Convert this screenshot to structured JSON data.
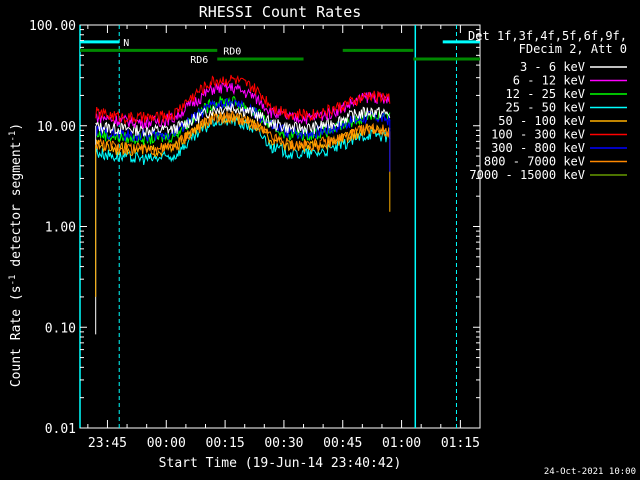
{
  "chart_data": {
    "type": "line",
    "title": "RHESSI Count Rates",
    "xlabel": "Start Time (19-Jun-14 23:40:42)",
    "ylabel_main": "Count Rate (s",
    "ylabel_sup": "-1",
    "ylabel_rest": " detector segment",
    "ylabel_sup2": "-1",
    "ylabel_close": ")",
    "y_scale": "log",
    "ylim": [
      0.01,
      100
    ],
    "xlim_minutes": [
      -7,
      95
    ],
    "x_tick_labels": [
      "23:45",
      "00:00",
      "00:15",
      "00:30",
      "00:45",
      "01:00",
      "01:15"
    ],
    "x_tick_minutes": [
      0,
      15,
      30,
      45,
      60,
      75,
      90
    ],
    "y_tick_labels": [
      "100.00",
      "10.00",
      "1.00",
      "0.10",
      "0.01"
    ],
    "y_tick_values": [
      100,
      10,
      1,
      0.1,
      0.01
    ],
    "legend_position": "right",
    "legend_header": [
      "Det 1f,3f,4f,5f,6f,9f,",
      "FDecim 2, Att 0"
    ],
    "series": [
      {
        "name": "3 - 6 keV",
        "color": "#ffffff",
        "values": [
          10.0,
          9.5,
          9.2,
          9.0,
          9.3,
          11.5,
          14.5,
          15.5,
          13.5,
          10.5,
          9.5,
          9.5,
          10.5,
          12.5,
          14.0,
          13.0
        ]
      },
      {
        "name": "6 - 12 keV",
        "color": "#ff00ff",
        "values": [
          12.5,
          11.5,
          11.0,
          11.0,
          12.0,
          17.0,
          23.5,
          24.0,
          20.0,
          13.5,
          12.0,
          12.0,
          13.5,
          16.5,
          20.0,
          17.5
        ]
      },
      {
        "name": "12 - 25 keV",
        "color": "#00ff00",
        "values": [
          8.5,
          7.8,
          7.5,
          7.5,
          8.0,
          12.0,
          17.0,
          17.5,
          14.5,
          9.5,
          8.2,
          8.3,
          9.0,
          11.0,
          13.0,
          12.0
        ]
      },
      {
        "name": "25 - 50 keV",
        "color": "#00ffff",
        "values": [
          5.5,
          5.0,
          4.8,
          4.7,
          5.0,
          7.5,
          11.0,
          11.5,
          9.5,
          6.2,
          5.3,
          5.3,
          5.8,
          7.0,
          8.5,
          7.8
        ]
      },
      {
        "name": "50 - 100 keV",
        "color": "#ffb000",
        "values": [
          6.5,
          6.0,
          5.8,
          5.7,
          6.0,
          8.8,
          12.0,
          12.5,
          10.5,
          7.2,
          6.2,
          6.2,
          6.8,
          8.0,
          9.5,
          8.8
        ]
      },
      {
        "name": "100 - 300 keV",
        "color": "#ff0000",
        "values": [
          13.5,
          12.5,
          12.0,
          12.0,
          13.0,
          20.0,
          28.0,
          29.0,
          24.0,
          15.5,
          13.0,
          13.0,
          14.5,
          17.0,
          20.0,
          19.0
        ]
      },
      {
        "name": "300 - 800 keV",
        "color": "#0000ff",
        "values": [
          9.0,
          8.3,
          8.0,
          8.0,
          8.5,
          12.0,
          16.0,
          16.5,
          14.0,
          9.8,
          8.6,
          8.6,
          9.4,
          11.0,
          12.5,
          11.5
        ]
      },
      {
        "name": "800 - 7000 keV",
        "color": "#ff8800",
        "values": [
          6.8,
          6.3,
          6.0,
          5.9,
          6.2,
          9.0,
          12.0,
          12.5,
          10.5,
          7.5,
          6.5,
          6.5,
          7.0,
          8.2,
          9.6,
          8.8
        ]
      },
      {
        "name": "7000 - 15000 keV",
        "color": "#669900",
        "values": [
          null,
          null,
          null,
          null,
          null,
          null,
          null,
          null,
          null,
          null,
          null,
          null,
          null,
          null,
          null,
          null
        ]
      }
    ],
    "x_minutes": [
      -3,
      2,
      7,
      12,
      17,
      22,
      27,
      32,
      37,
      42,
      47,
      52,
      57,
      62,
      67,
      72
    ],
    "attenuator_bars": [
      {
        "label": "N",
        "color": "#00ffff",
        "start": -7,
        "end": 3
      },
      {
        "label": "",
        "color": "#00ffff",
        "start": 85.5,
        "end": 95
      }
    ],
    "rd_bars": [
      {
        "label": "RD0",
        "color": "#008800",
        "start": -7,
        "end": 28
      },
      {
        "label": "",
        "color": "#008800",
        "start": 60,
        "end": 78
      },
      {
        "label": "RD6",
        "color": "#008800",
        "start": 28,
        "end": 50
      },
      {
        "label": "",
        "color": "#008800",
        "start": 78,
        "end": 95
      }
    ],
    "vlines_solid": [
      -7,
      78.5
    ],
    "vlines_dashed": [
      3,
      89
    ],
    "footer_date": "24-Oct-2021 10:00"
  }
}
